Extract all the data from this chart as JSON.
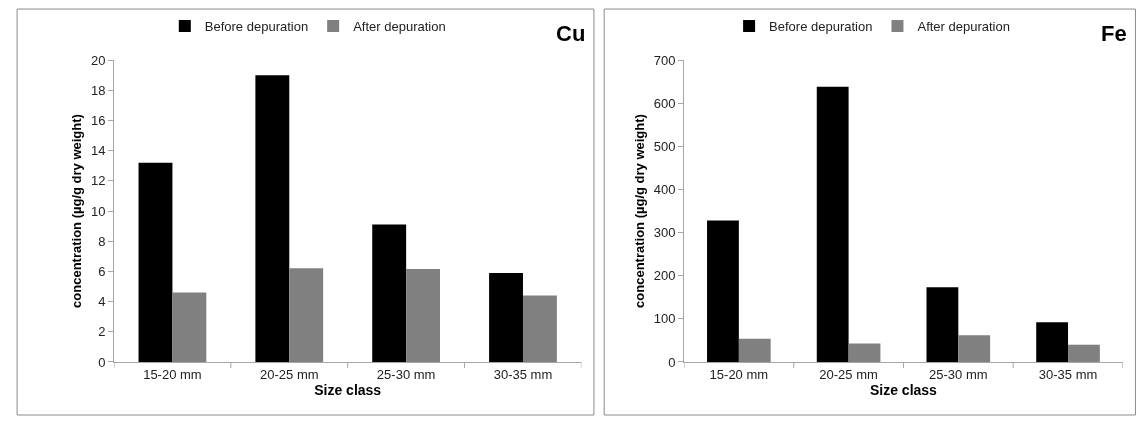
{
  "chart_data": [
    {
      "type": "bar",
      "title": "Cu",
      "xlabel": "Size class",
      "ylabel": "concentration (µg/g dry weight)",
      "categories": [
        "15-20 mm",
        "20-25 mm",
        "25-30 mm",
        "30-35 mm"
      ],
      "series": [
        {
          "name": "Before depuration",
          "color": "#000000",
          "values": [
            13.2,
            19.0,
            9.1,
            5.9
          ]
        },
        {
          "name": "After depuration",
          "color": "#808080",
          "values": [
            4.6,
            6.2,
            6.15,
            4.4
          ]
        }
      ],
      "ylim": [
        0,
        20
      ],
      "yticks": [
        0,
        2,
        4,
        6,
        8,
        10,
        12,
        14,
        16,
        18,
        20
      ],
      "legend": "top"
    },
    {
      "type": "bar",
      "title": "Fe",
      "xlabel": "Size class",
      "ylabel": "concentration (µg/g dry weight)",
      "categories": [
        "15-20 mm",
        "20-25 mm",
        "25-30 mm",
        "30-35 mm"
      ],
      "series": [
        {
          "name": "Before depuration",
          "color": "#000000",
          "values": [
            328,
            638,
            173,
            92
          ]
        },
        {
          "name": "After depuration",
          "color": "#808080",
          "values": [
            54,
            43,
            62,
            40
          ]
        }
      ],
      "ylim": [
        0,
        700
      ],
      "yticks": [
        0,
        100,
        200,
        300,
        400,
        500,
        600,
        700
      ],
      "legend": "top"
    }
  ]
}
